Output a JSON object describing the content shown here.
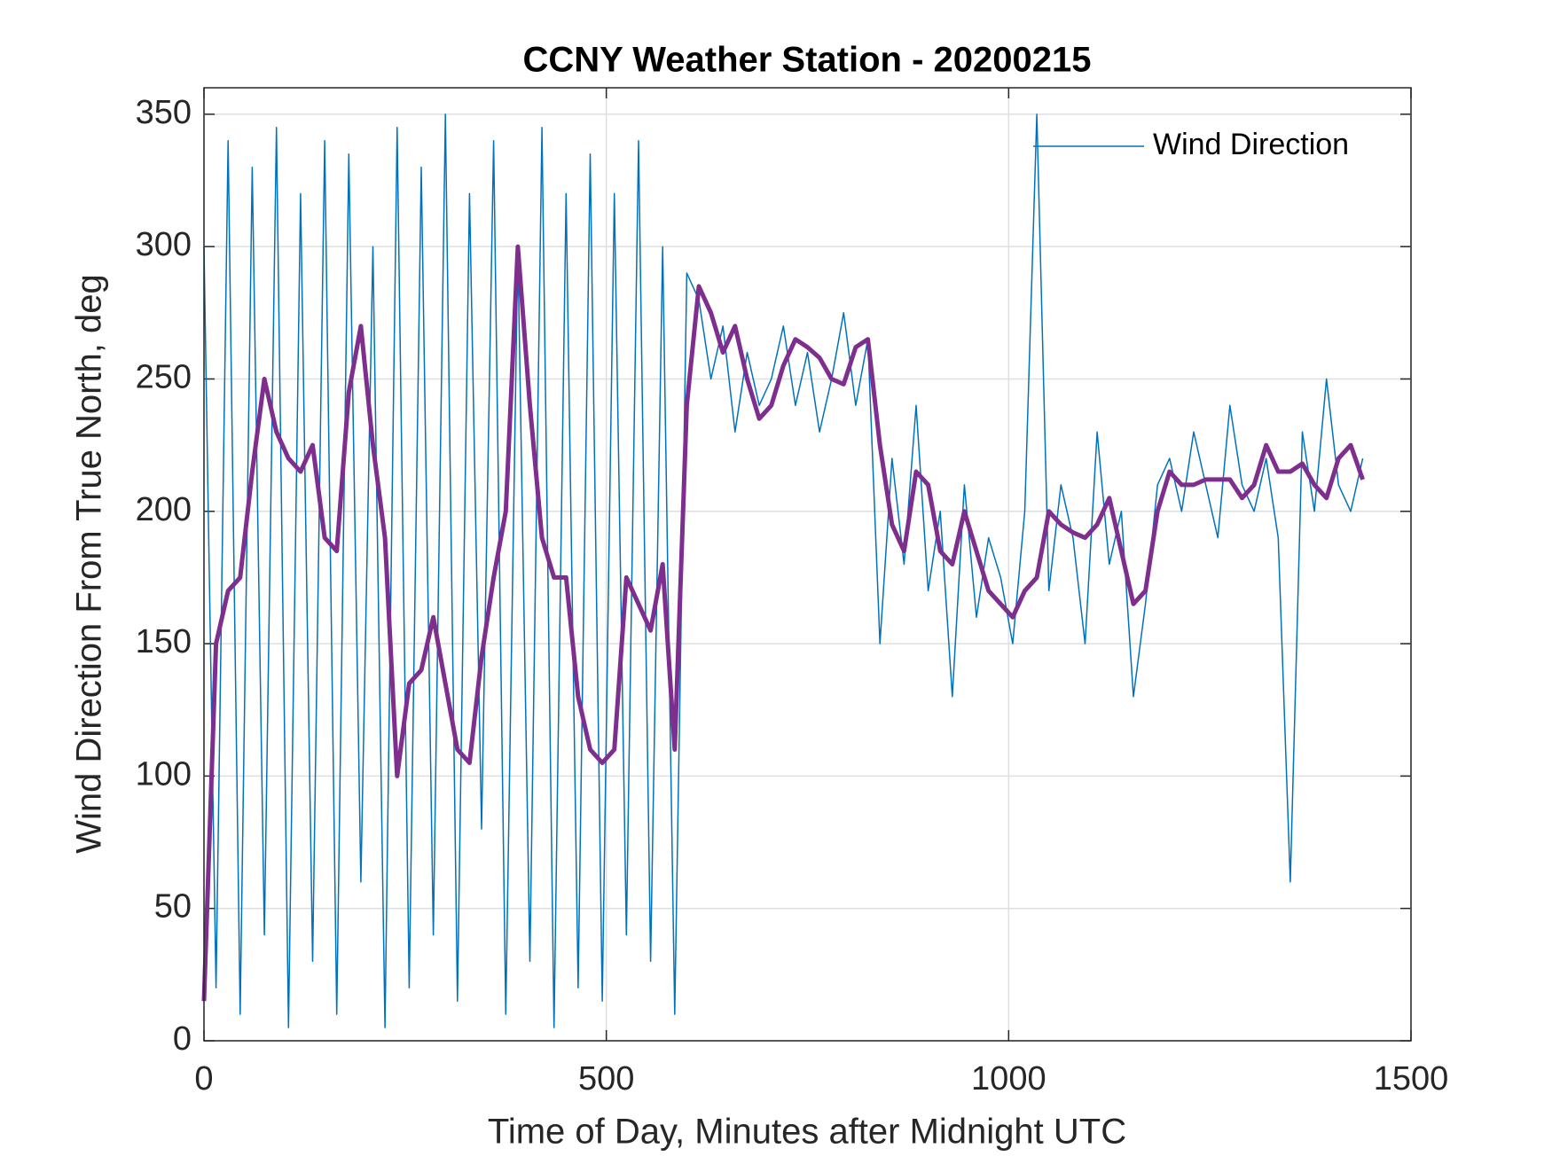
{
  "chart_data": {
    "type": "line",
    "title": "CCNY Weather Station - 20200215",
    "x_label": "Time of Day, Minutes after Midnight UTC",
    "y_label": "Wind Direction From True North, deg",
    "x": [
      0,
      15,
      30,
      45,
      60,
      75,
      90,
      105,
      120,
      135,
      150,
      165,
      180,
      195,
      210,
      225,
      240,
      255,
      270,
      285,
      300,
      315,
      330,
      345,
      360,
      375,
      390,
      405,
      420,
      435,
      450,
      465,
      480,
      495,
      510,
      525,
      540,
      555,
      570,
      585,
      600,
      615,
      630,
      645,
      660,
      675,
      690,
      705,
      720,
      735,
      750,
      765,
      780,
      795,
      810,
      825,
      840,
      855,
      870,
      885,
      900,
      915,
      930,
      945,
      960,
      975,
      990,
      1005,
      1020,
      1035,
      1050,
      1065,
      1080,
      1095,
      1110,
      1125,
      1140,
      1155,
      1170,
      1185,
      1200,
      1215,
      1230,
      1245,
      1260,
      1275,
      1290,
      1305,
      1320,
      1335,
      1350,
      1365,
      1380,
      1395,
      1410,
      1425,
      1440
    ],
    "series": [
      {
        "name": "Wind Direction",
        "color": "#0072bd",
        "width": 1.5,
        "values": [
          300,
          20,
          340,
          10,
          330,
          40,
          345,
          5,
          320,
          30,
          340,
          10,
          335,
          60,
          300,
          5,
          345,
          20,
          330,
          40,
          350,
          15,
          320,
          80,
          340,
          10,
          300,
          30,
          345,
          5,
          320,
          20,
          335,
          15,
          320,
          40,
          340,
          30,
          300,
          10,
          290,
          280,
          250,
          270,
          230,
          260,
          240,
          250,
          270,
          240,
          260,
          230,
          250,
          275,
          240,
          265,
          150,
          220,
          180,
          240,
          170,
          200,
          130,
          210,
          160,
          190,
          175,
          150,
          200,
          350,
          170,
          210,
          190,
          150,
          230,
          180,
          200,
          130,
          165,
          210,
          220,
          200,
          230,
          210,
          190,
          240,
          210,
          200,
          220,
          190,
          60,
          230,
          200,
          250,
          210,
          200,
          220
        ]
      },
      {
        "color": "#7e2f8e",
        "width": 5,
        "values": [
          15,
          150,
          170,
          175,
          215,
          250,
          230,
          220,
          215,
          225,
          190,
          185,
          245,
          270,
          225,
          190,
          100,
          135,
          140,
          160,
          135,
          110,
          105,
          145,
          175,
          200,
          300,
          240,
          190,
          175,
          175,
          130,
          110,
          105,
          110,
          175,
          165,
          155,
          180,
          110,
          240,
          285,
          275,
          260,
          270,
          250,
          235,
          240,
          255,
          265,
          262,
          258,
          250,
          248,
          262,
          265,
          225,
          195,
          185,
          215,
          210,
          185,
          180,
          200,
          185,
          170,
          165,
          160,
          170,
          175,
          200,
          195,
          192,
          190,
          195,
          205,
          185,
          165,
          170,
          200,
          215,
          210,
          210,
          212,
          212,
          212,
          205,
          210,
          225,
          215,
          215,
          218,
          210,
          205,
          220,
          225,
          212
        ]
      }
    ],
    "xlim": [
      0,
      1500
    ],
    "xticks": [
      0,
      500,
      1000,
      1500
    ],
    "ylim": [
      0,
      360
    ],
    "yticks": [
      0,
      50,
      100,
      150,
      200,
      250,
      300,
      350
    ],
    "grid": true,
    "legend": "upper right"
  }
}
